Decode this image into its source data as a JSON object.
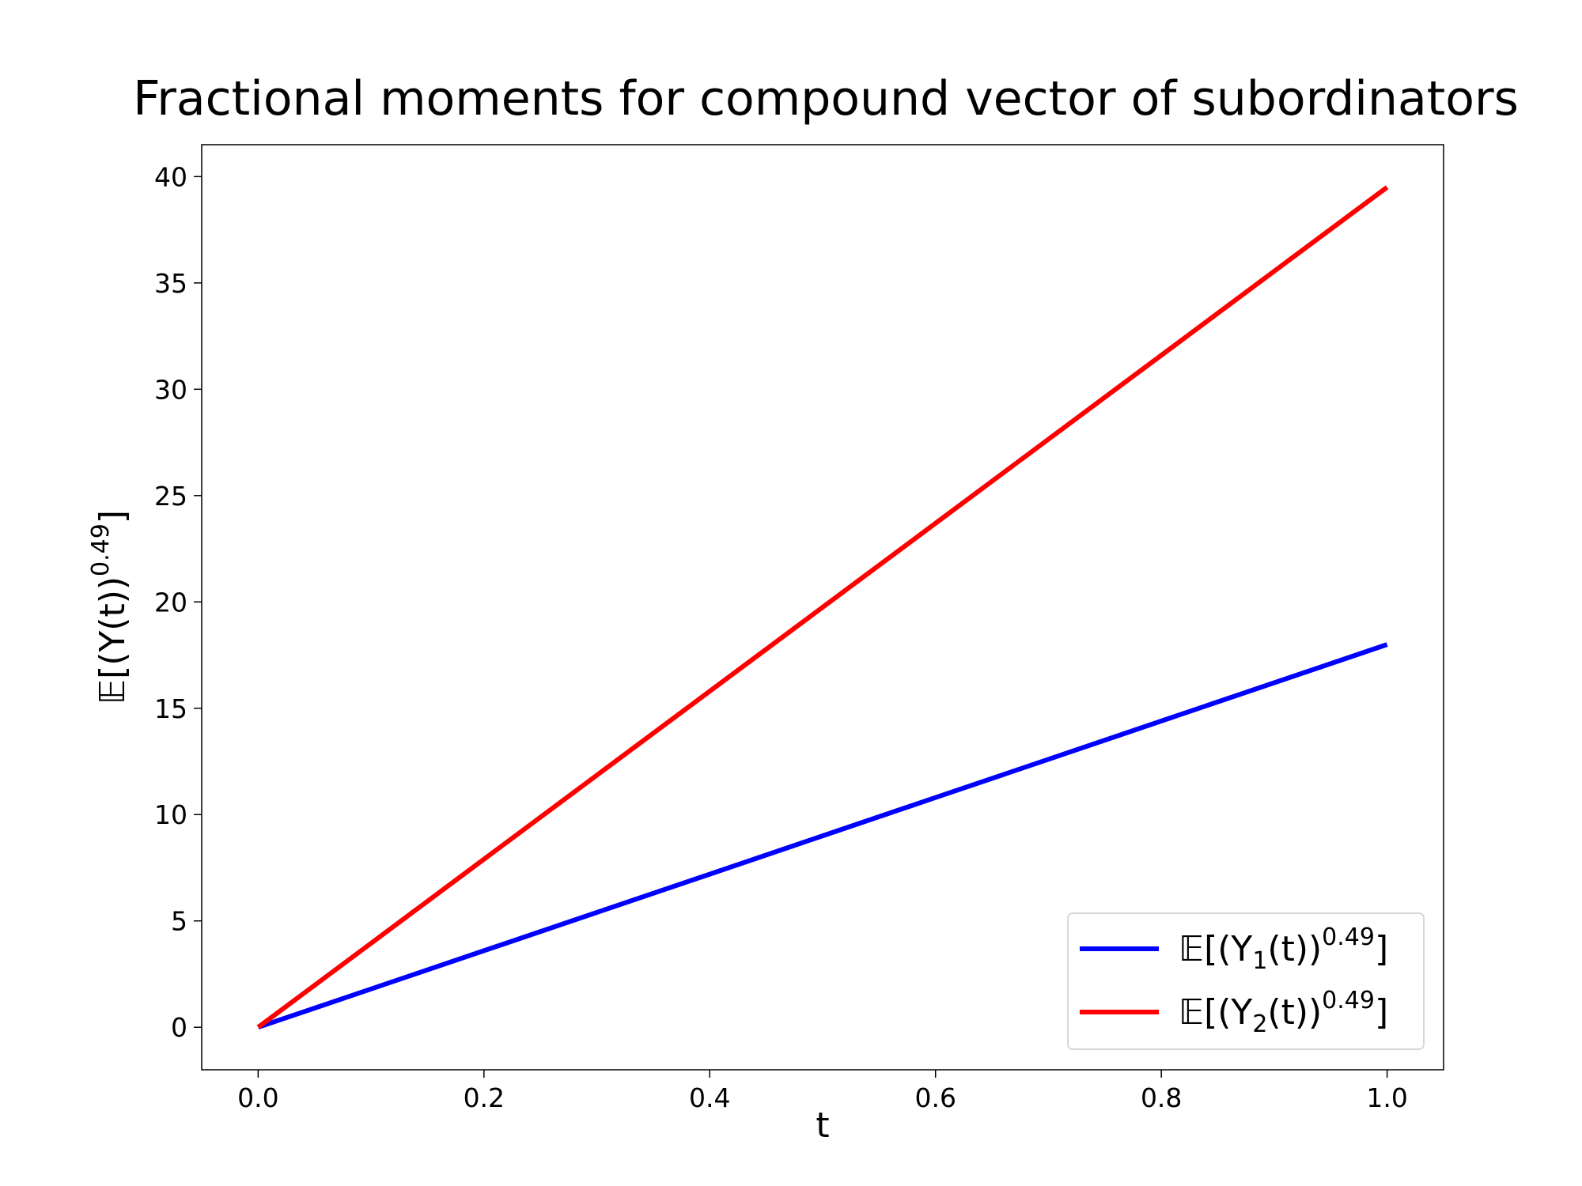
{
  "chart_data": {
    "type": "line",
    "title": "Fractional moments for compound vector of subordinators",
    "xlabel": "t",
    "ylabel": "𝔼[(Y(t))^0.49]",
    "xlim": [
      -0.05,
      1.05
    ],
    "ylim": [
      -2,
      41.5
    ],
    "x_ticks": [
      0.0,
      0.2,
      0.4,
      0.6,
      0.8,
      1.0
    ],
    "x_tick_labels": [
      "0.0",
      "0.2",
      "0.4",
      "0.6",
      "0.8",
      "1.0"
    ],
    "y_ticks": [
      0,
      5,
      10,
      15,
      20,
      25,
      30,
      35,
      40
    ],
    "y_tick_labels": [
      "0",
      "5",
      "10",
      "15",
      "20",
      "25",
      "30",
      "35",
      "40"
    ],
    "grid": false,
    "legend_position": "lower-right",
    "series": [
      {
        "name": "𝔼[(Y₁(t))^0.49]",
        "name_parts": {
          "pre": "𝔼[(Y",
          "sub": "1",
          "mid": "(t))",
          "sup": "0.49",
          "post": "]"
        },
        "color": "#0000ff",
        "x": [
          0.0,
          0.1,
          0.2,
          0.3,
          0.4,
          0.5,
          0.6,
          0.7,
          0.8,
          0.9,
          1.0
        ],
        "y": [
          0.0,
          1.8,
          3.6,
          5.4,
          7.2,
          9.0,
          10.8,
          12.6,
          14.4,
          16.2,
          18.0
        ]
      },
      {
        "name": "𝔼[(Y₂(t))^0.49]",
        "name_parts": {
          "pre": "𝔼[(Y",
          "sub": "2",
          "mid": "(t))",
          "sup": "0.49",
          "post": "]"
        },
        "color": "#ff0000",
        "x": [
          0.0,
          0.1,
          0.2,
          0.3,
          0.4,
          0.5,
          0.6,
          0.7,
          0.8,
          0.9,
          1.0
        ],
        "y": [
          0.0,
          3.95,
          7.9,
          11.85,
          15.8,
          19.75,
          23.7,
          27.65,
          31.6,
          35.55,
          39.5
        ]
      }
    ]
  }
}
